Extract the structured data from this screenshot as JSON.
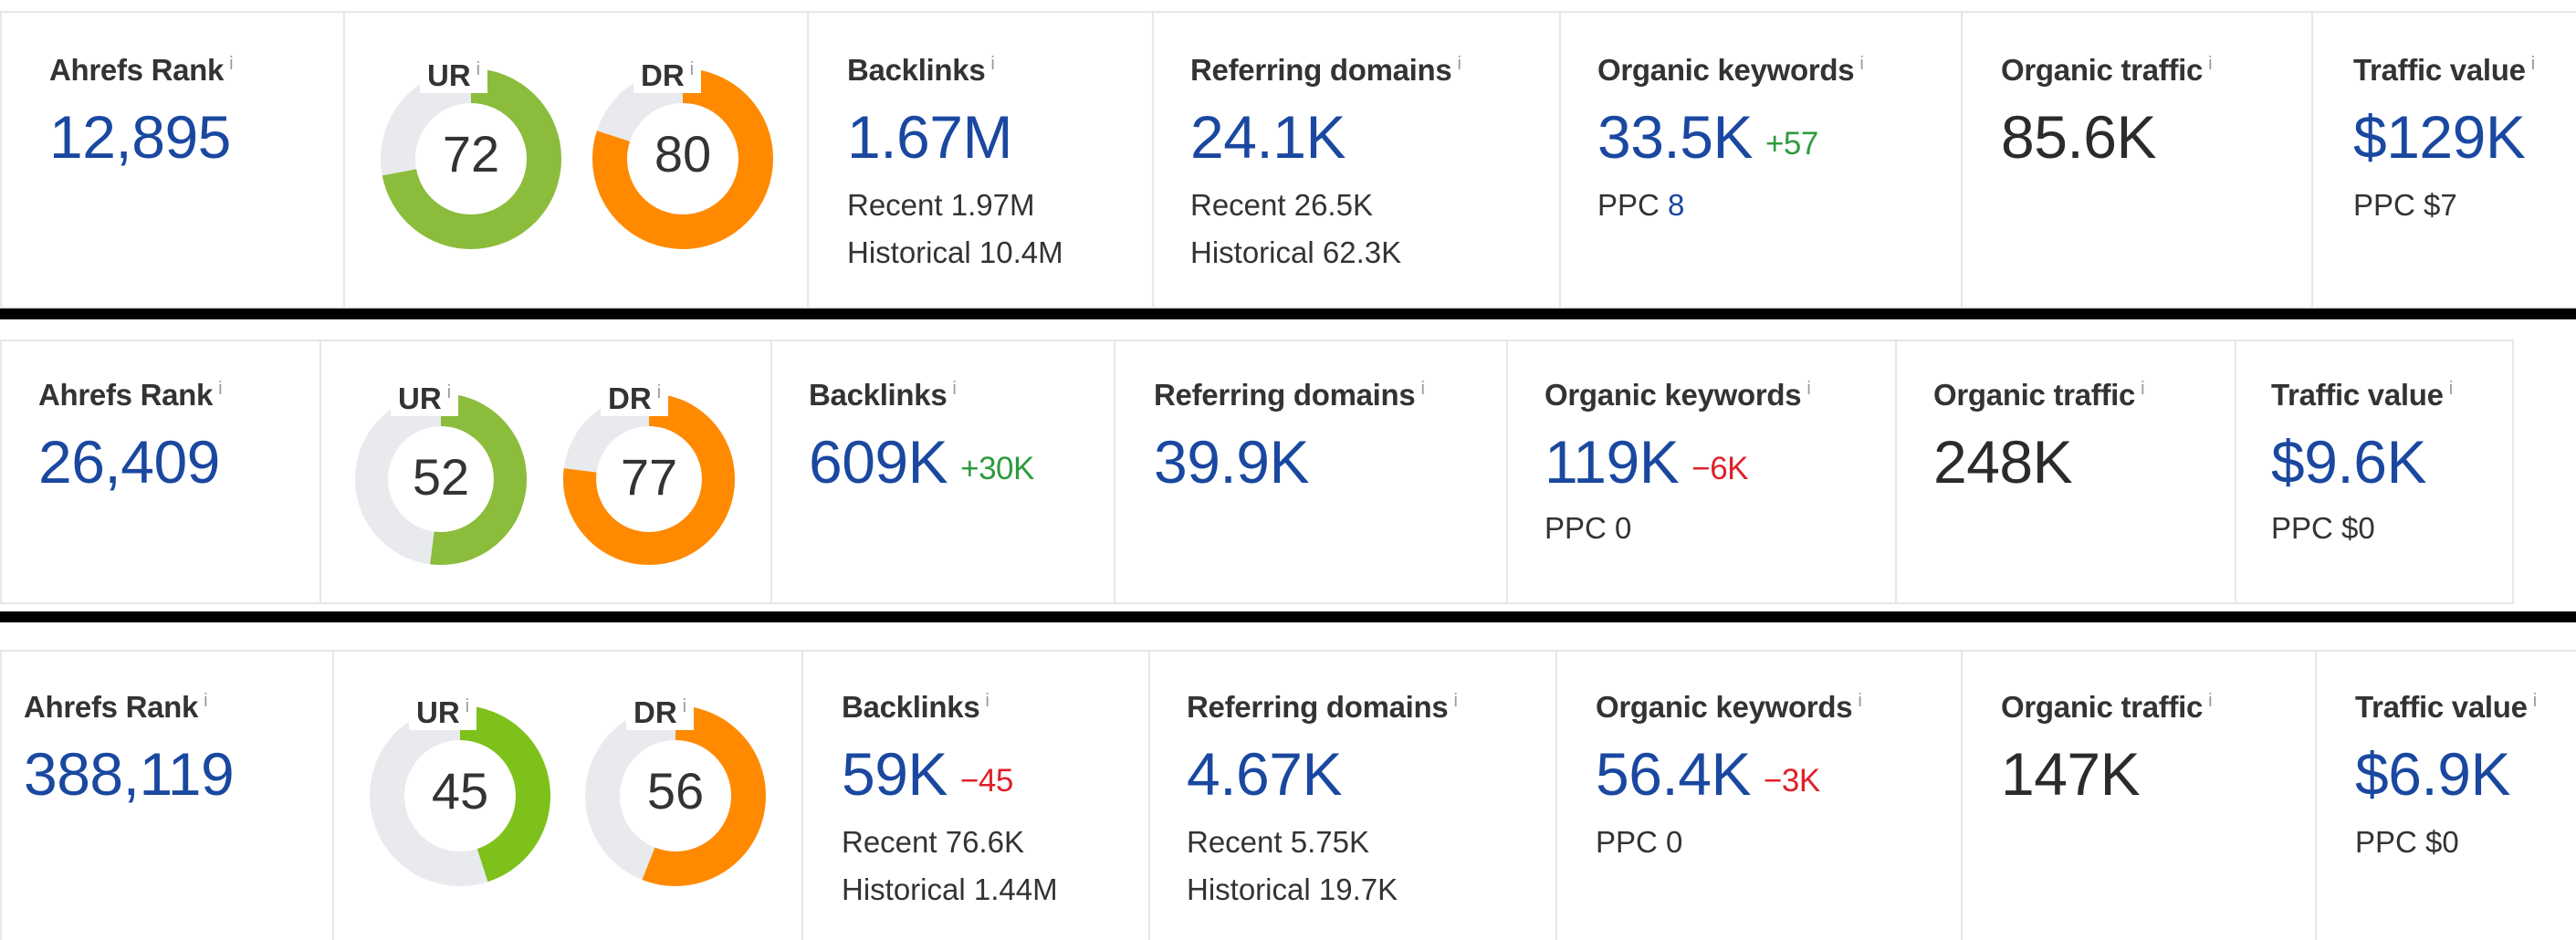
{
  "colors": {
    "link_blue": "#1a48a0",
    "positive": "#2e9b3d",
    "negative": "#e0202a",
    "ur_green": "#8cbc3c",
    "ur_green_alt": "#7ec11a",
    "dr_orange": "#ff8a00",
    "track": "#e8eaed"
  },
  "icons": {
    "info": "info-icon"
  },
  "panels": [
    {
      "ahrefs_rank": {
        "label": "Ahrefs Rank",
        "value": "12,895"
      },
      "ur": {
        "label": "UR",
        "value": "72",
        "fraction": 0.72
      },
      "dr": {
        "label": "DR",
        "value": "80",
        "fraction": 0.8
      },
      "backlinks": {
        "label": "Backlinks",
        "value": "1.67M",
        "delta": "",
        "recent": "Recent 1.97M",
        "historical": "Historical 10.4M"
      },
      "referring_domains": {
        "label": "Referring domains",
        "value": "24.1K",
        "recent": "Recent 26.5K",
        "historical": "Historical 62.3K"
      },
      "organic_keywords": {
        "label": "Organic keywords",
        "value": "33.5K",
        "delta": "+57",
        "delta_sign": "pos",
        "ppc_label": "PPC",
        "ppc_value": "8"
      },
      "organic_traffic": {
        "label": "Organic traffic",
        "value": "85.6K"
      },
      "traffic_value": {
        "label": "Traffic value",
        "value": "$129K",
        "ppc": "PPC $7"
      }
    },
    {
      "ahrefs_rank": {
        "label": "Ahrefs Rank",
        "value": "26,409"
      },
      "ur": {
        "label": "UR",
        "value": "52",
        "fraction": 0.52
      },
      "dr": {
        "label": "DR",
        "value": "77",
        "fraction": 0.77
      },
      "backlinks": {
        "label": "Backlinks",
        "value": "609K",
        "delta": "+30K",
        "delta_sign": "pos",
        "recent": "",
        "historical": ""
      },
      "referring_domains": {
        "label": "Referring domains",
        "value": "39.9K",
        "recent": "",
        "historical": ""
      },
      "organic_keywords": {
        "label": "Organic keywords",
        "value": "119K",
        "delta": "−6K",
        "delta_sign": "neg",
        "ppc_label": "PPC 0",
        "ppc_value": ""
      },
      "organic_traffic": {
        "label": "Organic traffic",
        "value": "248K"
      },
      "traffic_value": {
        "label": "Traffic value",
        "value": "$9.6K",
        "ppc": "PPC $0"
      }
    },
    {
      "ahrefs_rank": {
        "label": "Ahrefs Rank",
        "value": "388,119"
      },
      "ur": {
        "label": "UR",
        "value": "45",
        "fraction": 0.45
      },
      "dr": {
        "label": "DR",
        "value": "56",
        "fraction": 0.56
      },
      "backlinks": {
        "label": "Backlinks",
        "value": "59K",
        "delta": "−45",
        "delta_sign": "neg",
        "recent": "Recent 76.6K",
        "historical": "Historical 1.44M"
      },
      "referring_domains": {
        "label": "Referring domains",
        "value": "4.67K",
        "recent": "Recent 5.75K",
        "historical": "Historical 19.7K"
      },
      "organic_keywords": {
        "label": "Organic keywords",
        "value": "56.4K",
        "delta": "−3K",
        "delta_sign": "neg",
        "ppc_label": "PPC 0",
        "ppc_value": ""
      },
      "organic_traffic": {
        "label": "Organic traffic",
        "value": "147K"
      },
      "traffic_value": {
        "label": "Traffic value",
        "value": "$6.9K",
        "ppc": "PPC $0"
      }
    }
  ]
}
